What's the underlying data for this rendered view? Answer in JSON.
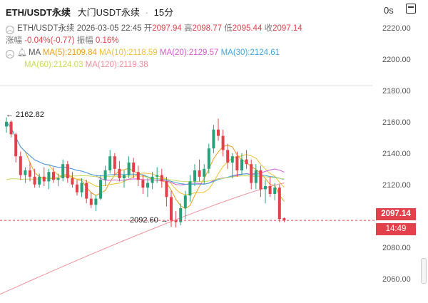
{
  "header": {
    "symbol": "ETH/USDT永续",
    "exchange": "大门USDT永续",
    "interval": "15分",
    "countdown": "0s"
  },
  "ohlc": {
    "time": "2026-03-05 22:45",
    "open_label": "开",
    "open": "2097.94",
    "high_label": "高",
    "high": "2098.77",
    "low_label": "低",
    "low": "2095.44",
    "close_label": "收",
    "close": "2097.14",
    "change_label": "涨幅",
    "change": "-0.04%(-0.77)",
    "amplitude_label": "振幅",
    "amplitude": "0.16%"
  },
  "ma_legend": {
    "label": "MA",
    "items": [
      {
        "text": "MA(5):2109.84",
        "color": "#e89c1a"
      },
      {
        "text": "MA(10):2118.59",
        "color": "#f2c12e"
      },
      {
        "text": "MA(20):2129.57",
        "color": "#d65bd1"
      },
      {
        "text": "MA(30):2124.61",
        "color": "#3ea6e0"
      },
      {
        "text": "MA(60):2124.03",
        "color": "#c6dc5d"
      },
      {
        "text": "MA(120):2119.38",
        "color": "#f0909a"
      }
    ]
  },
  "price_tags": {
    "last_price": "2097.14",
    "countdown_time": "14:49"
  },
  "annotations": {
    "high": "← 2162.82",
    "low": "2092.60 →"
  },
  "chart_data": {
    "type": "candlestick",
    "ylim": [
      2050,
      2230
    ],
    "y_ticks": [
      "2220.00",
      "2200.00",
      "2180.00",
      "2160.00",
      "2140.00",
      "2120.00",
      "2100.00",
      "2080.00",
      "2060.00"
    ],
    "y_tick_values": [
      2220,
      2200,
      2180,
      2160,
      2140,
      2120,
      2100,
      2080,
      2060
    ],
    "last_price": 2097.14,
    "up_color": "#27a17a",
    "down_color": "#e2414b",
    "candles": [
      [
        2157,
        2162.8,
        2153,
        2160
      ],
      [
        2160,
        2161,
        2150,
        2152
      ],
      [
        2152,
        2153,
        2134,
        2138
      ],
      [
        2138,
        2141,
        2123,
        2126
      ],
      [
        2126,
        2131,
        2121,
        2129
      ],
      [
        2129,
        2134,
        2122,
        2125
      ],
      [
        2125,
        2130,
        2118,
        2120
      ],
      [
        2120,
        2127,
        2118,
        2125
      ],
      [
        2125,
        2131,
        2119,
        2122
      ],
      [
        2122,
        2130,
        2117,
        2128
      ],
      [
        2128,
        2131,
        2121,
        2123
      ],
      [
        2123,
        2127,
        2119,
        2124
      ],
      [
        2124,
        2136,
        2122,
        2133
      ],
      [
        2133,
        2135,
        2121,
        2124
      ],
      [
        2124,
        2128,
        2118,
        2120
      ],
      [
        2120,
        2123,
        2113,
        2115
      ],
      [
        2115,
        2124,
        2112,
        2121
      ],
      [
        2121,
        2123,
        2108,
        2111
      ],
      [
        2111,
        2115,
        2105,
        2107
      ],
      [
        2107,
        2113,
        2103,
        2111
      ],
      [
        2111,
        2126,
        2110,
        2123
      ],
      [
        2123,
        2132,
        2119,
        2129
      ],
      [
        2129,
        2142,
        2127,
        2138
      ],
      [
        2138,
        2140,
        2126,
        2130
      ],
      [
        2130,
        2135,
        2122,
        2124
      ],
      [
        2124,
        2129,
        2118,
        2126
      ],
      [
        2126,
        2138,
        2124,
        2134
      ],
      [
        2134,
        2137,
        2124,
        2128
      ],
      [
        2128,
        2132,
        2119,
        2123
      ],
      [
        2123,
        2126,
        2114,
        2118
      ],
      [
        2118,
        2124,
        2112,
        2121
      ],
      [
        2121,
        2128,
        2117,
        2125
      ],
      [
        2125,
        2131,
        2121,
        2126
      ],
      [
        2126,
        2130,
        2118,
        2122
      ],
      [
        2122,
        2125,
        2106,
        2112
      ],
      [
        2112,
        2116,
        2093,
        2097
      ],
      [
        2097,
        2103,
        2092.6,
        2096
      ],
      [
        2096,
        2108,
        2094,
        2105
      ],
      [
        2105,
        2116,
        2098,
        2113
      ],
      [
        2113,
        2126,
        2109,
        2122
      ],
      [
        2122,
        2133,
        2119,
        2129
      ],
      [
        2129,
        2136,
        2122,
        2125
      ],
      [
        2125,
        2133,
        2120,
        2130
      ],
      [
        2130,
        2146,
        2127,
        2143
      ],
      [
        2143,
        2158,
        2140,
        2155
      ],
      [
        2155,
        2162,
        2148,
        2151
      ],
      [
        2151,
        2155,
        2138,
        2142
      ],
      [
        2142,
        2146,
        2130,
        2134
      ],
      [
        2134,
        2140,
        2124,
        2138
      ],
      [
        2138,
        2141,
        2125,
        2129
      ],
      [
        2129,
        2140,
        2126,
        2136
      ],
      [
        2136,
        2142,
        2130,
        2133
      ],
      [
        2133,
        2136,
        2117,
        2121
      ],
      [
        2121,
        2133,
        2117,
        2129
      ],
      [
        2129,
        2132,
        2112,
        2117
      ],
      [
        2117,
        2123,
        2108,
        2119
      ],
      [
        2119,
        2125,
        2112,
        2114
      ],
      [
        2114,
        2121,
        2110,
        2118
      ],
      [
        2118,
        2120,
        2096,
        2098
      ],
      [
        2098.5,
        2099,
        2096,
        2097.14
      ]
    ]
  }
}
